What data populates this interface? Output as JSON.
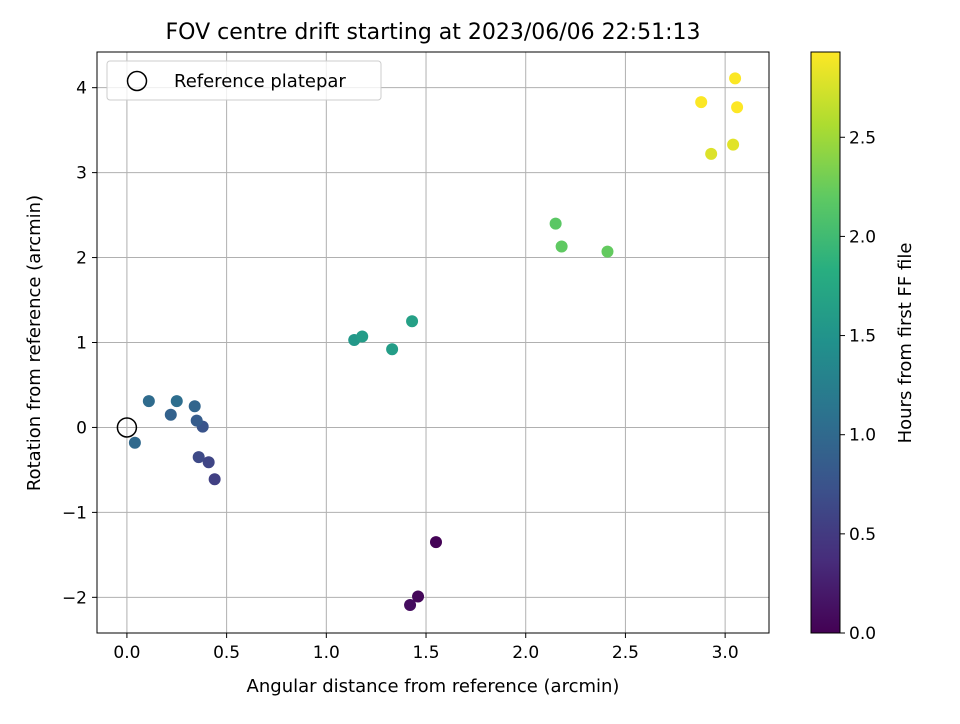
{
  "chart_data": {
    "type": "scatter",
    "title": "FOV centre drift starting at 2023/06/06 22:51:13",
    "xlabel": "Angular distance from reference (arcmin)",
    "ylabel": "Rotation from reference (arcmin)",
    "xlim": [
      -0.15,
      3.22
    ],
    "ylim": [
      -2.42,
      4.42
    ],
    "xticks": [
      0.0,
      0.5,
      1.0,
      1.5,
      2.0,
      2.5,
      3.0
    ],
    "xtick_labels": [
      "0.0",
      "0.5",
      "1.0",
      "1.5",
      "2.0",
      "2.5",
      "3.0"
    ],
    "yticks": [
      -2,
      -1,
      0,
      1,
      2,
      3,
      4
    ],
    "ytick_labels": [
      "−2",
      "−1",
      "0",
      "1",
      "2",
      "3",
      "4"
    ],
    "grid": true,
    "legend": {
      "position": "upper-left",
      "entries": [
        {
          "label": "Reference platepar",
          "marker": "open-circle"
        }
      ]
    },
    "reference_point": {
      "x": 0.0,
      "y": 0.0
    },
    "colorbar": {
      "label": "Hours from first FF file",
      "colormap": "viridis",
      "range": [
        0.0,
        2.93
      ],
      "ticks": [
        0.0,
        0.5,
        1.0,
        1.5,
        2.0,
        2.5
      ],
      "tick_labels": [
        "0.0",
        "0.5",
        "1.0",
        "1.5",
        "2.0",
        "2.5"
      ]
    },
    "points": [
      {
        "x": 1.55,
        "y": -1.35,
        "hours": 0.02
      },
      {
        "x": 1.46,
        "y": -1.99,
        "hours": 0.05
      },
      {
        "x": 1.42,
        "y": -2.09,
        "hours": 0.1
      },
      {
        "x": 0.44,
        "y": -0.61,
        "hours": 0.55
      },
      {
        "x": 0.41,
        "y": -0.41,
        "hours": 0.6
      },
      {
        "x": 0.36,
        "y": -0.35,
        "hours": 0.65
      },
      {
        "x": 0.38,
        "y": 0.01,
        "hours": 0.75
      },
      {
        "x": 0.35,
        "y": 0.08,
        "hours": 0.85
      },
      {
        "x": 0.22,
        "y": 0.15,
        "hours": 0.92
      },
      {
        "x": 0.34,
        "y": 0.25,
        "hours": 0.95
      },
      {
        "x": 0.04,
        "y": -0.18,
        "hours": 1.0
      },
      {
        "x": 0.11,
        "y": 0.31,
        "hours": 1.02
      },
      {
        "x": 0.25,
        "y": 0.31,
        "hours": 1.05
      },
      {
        "x": 1.14,
        "y": 1.03,
        "hours": 1.55
      },
      {
        "x": 1.18,
        "y": 1.07,
        "hours": 1.6
      },
      {
        "x": 1.33,
        "y": 0.92,
        "hours": 1.62
      },
      {
        "x": 1.43,
        "y": 1.25,
        "hours": 1.65
      },
      {
        "x": 2.15,
        "y": 2.4,
        "hours": 2.17
      },
      {
        "x": 2.18,
        "y": 2.13,
        "hours": 2.2
      },
      {
        "x": 2.41,
        "y": 2.07,
        "hours": 2.22
      },
      {
        "x": 2.93,
        "y": 3.22,
        "hours": 2.78
      },
      {
        "x": 3.04,
        "y": 3.33,
        "hours": 2.8
      },
      {
        "x": 2.88,
        "y": 3.83,
        "hours": 2.92
      },
      {
        "x": 3.05,
        "y": 4.11,
        "hours": 2.92
      },
      {
        "x": 3.06,
        "y": 3.77,
        "hours": 2.93
      }
    ]
  }
}
